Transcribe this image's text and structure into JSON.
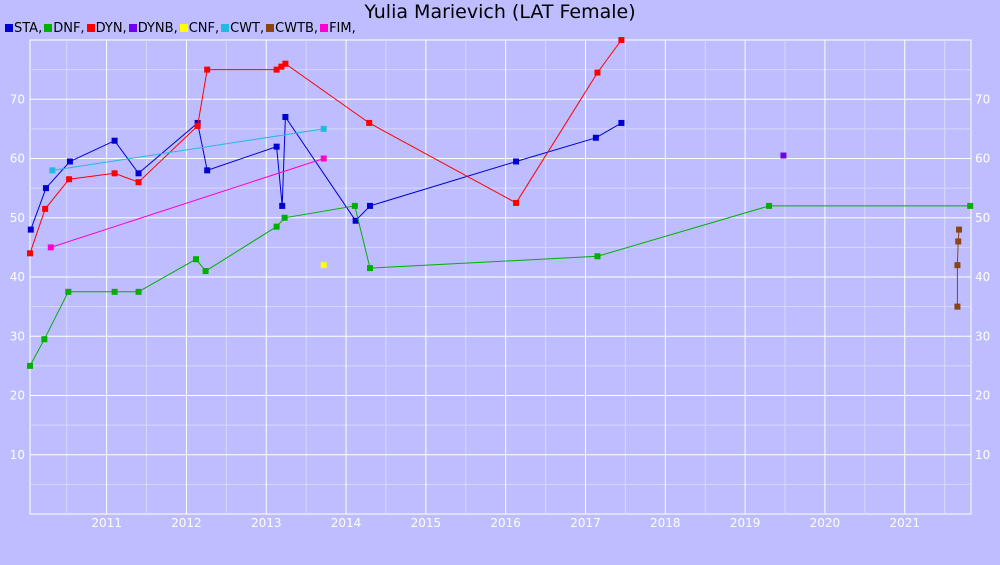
{
  "chart_data": {
    "type": "line",
    "title": "Yulia Marievich (LAT Female)",
    "xlabel": "",
    "ylabel": "",
    "xlim": [
      2010.04,
      2021.83
    ],
    "ylim": [
      0,
      80
    ],
    "grid": true,
    "legend_position": "top-left",
    "x_ticks": [
      2011,
      2012,
      2013,
      2014,
      2015,
      2016,
      2017,
      2018,
      2019,
      2020,
      2021
    ],
    "x_tick_labels": [
      "2011",
      "2012",
      "2013",
      "2014",
      "2015",
      "2016",
      "2017",
      "2018",
      "2019",
      "2020",
      "2021"
    ],
    "y_ticks": [
      10,
      20,
      30,
      40,
      50,
      60,
      70
    ],
    "y_tick_labels": [
      "10",
      "20",
      "30",
      "40",
      "50",
      "60",
      "70"
    ],
    "series": [
      {
        "name": "STA,",
        "color": "#0000d0",
        "x": [
          2010.05,
          2010.24,
          2010.54,
          2011.1,
          2011.4,
          2012.14,
          2012.26,
          2013.13,
          2013.2,
          2013.24,
          2014.12,
          2014.3,
          2016.13,
          2017.13,
          2017.45
        ],
        "y": [
          48,
          55,
          59.5,
          63,
          57.5,
          66,
          58,
          62,
          52,
          67,
          49.5,
          52,
          59.5,
          63.5,
          66
        ]
      },
      {
        "name": "DNF,",
        "color": "#00b000",
        "x": [
          2010.04,
          2010.22,
          2010.52,
          2011.1,
          2011.4,
          2012.12,
          2012.24,
          2013.13,
          2013.23,
          2014.11,
          2014.3,
          2017.15,
          2019.3,
          2021.82
        ],
        "y": [
          25,
          29.5,
          37.5,
          37.5,
          37.5,
          43,
          41,
          48.5,
          50,
          52,
          41.5,
          43.5,
          52,
          52
        ]
      },
      {
        "name": "DYN,",
        "color": "#ff0000",
        "x": [
          2010.04,
          2010.23,
          2010.53,
          2011.1,
          2011.4,
          2012.14,
          2012.26,
          2013.13,
          2013.19,
          2013.24,
          2014.29,
          2016.13,
          2017.15,
          2017.45
        ],
        "y": [
          44,
          51.5,
          56.5,
          57.5,
          56,
          65.5,
          75,
          75,
          75.5,
          76,
          66,
          52.5,
          74.5,
          80
        ]
      },
      {
        "name": "DYNB,",
        "color": "#7000f0",
        "x": [
          2019.48
        ],
        "y": [
          60.5
        ]
      },
      {
        "name": "CNF,",
        "color": "#ffff00",
        "x": [
          2013.72
        ],
        "y": [
          42
        ]
      },
      {
        "name": "CWT,",
        "color": "#22bbe0",
        "x": [
          2010.32,
          2013.72
        ],
        "y": [
          58,
          65
        ]
      },
      {
        "name": "CWTB,",
        "color": "#8b4513",
        "x": [
          2021.66,
          2021.66,
          2021.67,
          2021.68
        ],
        "y": [
          35,
          42,
          46,
          48
        ]
      },
      {
        "name": "FIM,",
        "color": "#ff00d0",
        "x": [
          2010.3,
          2013.72
        ],
        "y": [
          45,
          60
        ]
      }
    ]
  }
}
